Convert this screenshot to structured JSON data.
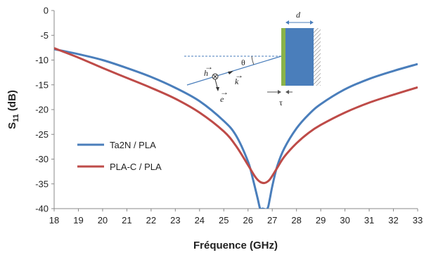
{
  "chart_data": {
    "type": "line",
    "xlabel": "Fréquence (GHz)",
    "ylabel_main": "S",
    "ylabel_sub": "11",
    "ylabel_unit": " (dB)",
    "xlim": [
      18,
      33
    ],
    "ylim": [
      -40,
      0
    ],
    "xticks": [
      "18",
      "19",
      "20",
      "21",
      "22",
      "23",
      "24",
      "25",
      "26",
      "27",
      "28",
      "29",
      "30",
      "31",
      "32",
      "33"
    ],
    "yticks": [
      "0",
      "-5",
      "-10",
      "-15",
      "-20",
      "-25",
      "-30",
      "-35",
      "-40"
    ],
    "grid": false,
    "legend_position": "bottom-left",
    "series": [
      {
        "name": "Ta2N / PLA",
        "color": "#4a7ebb",
        "x": [
          18,
          19,
          20,
          21,
          22,
          23,
          24,
          25,
          25.5,
          26,
          26.2,
          26.4,
          26.5,
          26.6,
          26.8,
          26.9,
          27,
          27.2,
          27.5,
          28,
          28.5,
          29,
          30,
          31,
          32,
          33
        ],
        "y": [
          -7.8,
          -8.8,
          -10.0,
          -11.6,
          -13.4,
          -15.6,
          -18.3,
          -22.3,
          -25.2,
          -30.5,
          -34.0,
          -38.0,
          -40.0,
          -40.0,
          -40.0,
          -38.0,
          -35.5,
          -31.5,
          -27.8,
          -23.8,
          -21.0,
          -18.9,
          -15.9,
          -13.8,
          -12.2,
          -10.8
        ]
      },
      {
        "name": "PLA-C / PLA",
        "color": "#be4b48",
        "x": [
          18,
          19,
          20,
          21,
          22,
          23,
          24,
          25,
          25.5,
          26,
          26.3,
          26.5,
          26.7,
          26.9,
          27.2,
          27.5,
          28,
          28.5,
          29,
          30,
          31,
          32,
          33
        ],
        "y": [
          -7.6,
          -9.5,
          -11.6,
          -13.6,
          -15.6,
          -17.8,
          -20.6,
          -24.4,
          -27.3,
          -31.2,
          -33.6,
          -34.6,
          -34.8,
          -34.1,
          -31.8,
          -29.5,
          -26.8,
          -24.7,
          -23.1,
          -20.6,
          -18.6,
          -17.0,
          -15.5
        ]
      }
    ]
  },
  "inset": {
    "h_label": "h",
    "k_label": "k",
    "e_label": "e",
    "theta_label": "θ",
    "d_label": "d",
    "tau_label": "τ",
    "colors": {
      "resistive_sheet": "#8ab34a",
      "dielectric": "#4a7ebb",
      "ground": "#a0a0a0"
    }
  }
}
